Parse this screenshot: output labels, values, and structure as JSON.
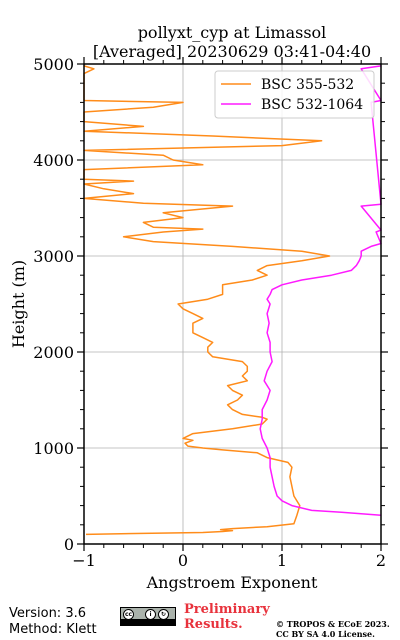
{
  "chart_data": {
    "type": "line",
    "title": "pollyxt_cyp at Limassol",
    "subtitle": "[Averaged] 20230629 03:41-04:40",
    "xlabel": "Angstroem Exponent",
    "ylabel": "Height (m)",
    "xlim": [
      -1,
      2
    ],
    "ylim": [
      0,
      5000
    ],
    "xticks": [
      "−1",
      "0",
      "1",
      "2"
    ],
    "yticks": [
      "0",
      "1000",
      "2000",
      "3000",
      "4000",
      "5000"
    ],
    "grid": true,
    "legend_position": "top-right",
    "series": [
      {
        "name": "BSC 355-532",
        "color": "#ff8c1a",
        "points": [
          [
            -0.98,
            100
          ],
          [
            -0.4,
            110
          ],
          [
            0.2,
            120
          ],
          [
            0.4,
            130
          ],
          [
            0.5,
            140
          ],
          [
            0.38,
            150
          ],
          [
            0.5,
            160
          ],
          [
            0.85,
            180
          ],
          [
            1.12,
            210
          ],
          [
            1.15,
            300
          ],
          [
            1.18,
            400
          ],
          [
            1.12,
            500
          ],
          [
            1.1,
            600
          ],
          [
            1.08,
            700
          ],
          [
            1.1,
            800
          ],
          [
            1.06,
            850
          ],
          [
            0.85,
            900
          ],
          [
            0.75,
            950
          ],
          [
            0.4,
            980
          ],
          [
            0.2,
            1000
          ],
          [
            0.05,
            1020
          ],
          [
            0.02,
            1050
          ],
          [
            0.1,
            1080
          ],
          [
            0.0,
            1100
          ],
          [
            0.1,
            1150
          ],
          [
            0.5,
            1200
          ],
          [
            0.8,
            1250
          ],
          [
            0.85,
            1300
          ],
          [
            0.8,
            1320
          ],
          [
            0.6,
            1350
          ],
          [
            0.5,
            1400
          ],
          [
            0.45,
            1450
          ],
          [
            0.55,
            1500
          ],
          [
            0.6,
            1550
          ],
          [
            0.5,
            1600
          ],
          [
            0.45,
            1650
          ],
          [
            0.65,
            1700
          ],
          [
            0.6,
            1750
          ],
          [
            0.65,
            1800
          ],
          [
            0.65,
            1850
          ],
          [
            0.6,
            1900
          ],
          [
            0.3,
            1950
          ],
          [
            0.25,
            2000
          ],
          [
            0.25,
            2050
          ],
          [
            0.3,
            2100
          ],
          [
            0.2,
            2150
          ],
          [
            0.1,
            2200
          ],
          [
            0.1,
            2250
          ],
          [
            0.1,
            2300
          ],
          [
            0.2,
            2350
          ],
          [
            0.1,
            2400
          ],
          [
            0.0,
            2450
          ],
          [
            -0.05,
            2500
          ],
          [
            0.25,
            2550
          ],
          [
            0.4,
            2600
          ],
          [
            0.4,
            2650
          ],
          [
            0.4,
            2700
          ],
          [
            0.7,
            2750
          ],
          [
            0.85,
            2800
          ],
          [
            0.75,
            2850
          ],
          [
            0.85,
            2900
          ],
          [
            1.2,
            2950
          ],
          [
            1.48,
            3000
          ],
          [
            1.2,
            3050
          ],
          [
            0.5,
            3100
          ],
          [
            -0.3,
            3150
          ],
          [
            -0.6,
            3200
          ],
          [
            -0.2,
            3250
          ],
          [
            0.2,
            3280
          ],
          [
            -0.3,
            3300
          ],
          [
            -0.4,
            3350
          ],
          [
            0.0,
            3400
          ],
          [
            -0.2,
            3450
          ],
          [
            0.5,
            3520
          ],
          [
            -0.4,
            3550
          ],
          [
            -1.0,
            3600
          ],
          [
            -0.5,
            3650
          ],
          [
            -0.8,
            3700
          ],
          [
            -1.0,
            3750
          ],
          [
            -0.5,
            3780
          ],
          [
            -1.0,
            3800
          ],
          [
            -1.0,
            3900
          ],
          [
            0.2,
            3950
          ],
          [
            -0.1,
            4000
          ],
          [
            -0.2,
            4050
          ],
          [
            -1.0,
            4100
          ],
          [
            1.0,
            4150
          ],
          [
            1.4,
            4200
          ],
          [
            0.3,
            4250
          ],
          [
            -1.0,
            4300
          ],
          [
            -0.4,
            4350
          ],
          [
            -1.0,
            4400
          ],
          [
            -1.0,
            4500
          ],
          [
            -0.3,
            4550
          ],
          [
            0.0,
            4600
          ],
          [
            -1.0,
            4620
          ],
          [
            -1.0,
            4900
          ],
          [
            -0.9,
            4950
          ],
          [
            -1.0,
            4980
          ]
        ]
      },
      {
        "name": "BSC 532-1064",
        "color": "#ff1aff",
        "points": [
          [
            2.0,
            300
          ],
          [
            1.6,
            330
          ],
          [
            1.3,
            350
          ],
          [
            1.1,
            400
          ],
          [
            1.0,
            450
          ],
          [
            0.95,
            500
          ],
          [
            0.92,
            600
          ],
          [
            0.9,
            700
          ],
          [
            0.88,
            800
          ],
          [
            0.88,
            900
          ],
          [
            0.85,
            1000
          ],
          [
            0.8,
            1100
          ],
          [
            0.78,
            1200
          ],
          [
            0.8,
            1300
          ],
          [
            0.8,
            1400
          ],
          [
            0.85,
            1500
          ],
          [
            0.88,
            1600
          ],
          [
            0.82,
            1700
          ],
          [
            0.85,
            1800
          ],
          [
            0.9,
            1900
          ],
          [
            0.88,
            2000
          ],
          [
            0.88,
            2100
          ],
          [
            0.85,
            2200
          ],
          [
            0.87,
            2300
          ],
          [
            0.85,
            2400
          ],
          [
            0.88,
            2500
          ],
          [
            0.85,
            2550
          ],
          [
            0.88,
            2600
          ],
          [
            0.9,
            2650
          ],
          [
            1.0,
            2700
          ],
          [
            1.2,
            2750
          ],
          [
            1.5,
            2800
          ],
          [
            1.7,
            2850
          ],
          [
            1.75,
            2900
          ],
          [
            1.78,
            2950
          ],
          [
            1.8,
            3000
          ],
          [
            1.8,
            3050
          ],
          [
            1.9,
            3100
          ],
          [
            2.0,
            3130
          ],
          [
            1.95,
            3250
          ],
          [
            2.0,
            3270
          ],
          [
            1.8,
            3520
          ],
          [
            2.0,
            3540
          ],
          [
            1.9,
            4600
          ],
          [
            2.0,
            4620
          ],
          [
            1.8,
            4950
          ],
          [
            2.0,
            4980
          ]
        ]
      }
    ]
  },
  "footer": {
    "version": "Version: 3.6",
    "method": "Method: Klett",
    "license_badge": "BY SA",
    "preliminary_line1": "Preliminary",
    "preliminary_line2": "Results.",
    "copyright_line1": "© TROPOS & ECoE 2023.",
    "copyright_line2": "CC BY SA 4.0 License."
  }
}
